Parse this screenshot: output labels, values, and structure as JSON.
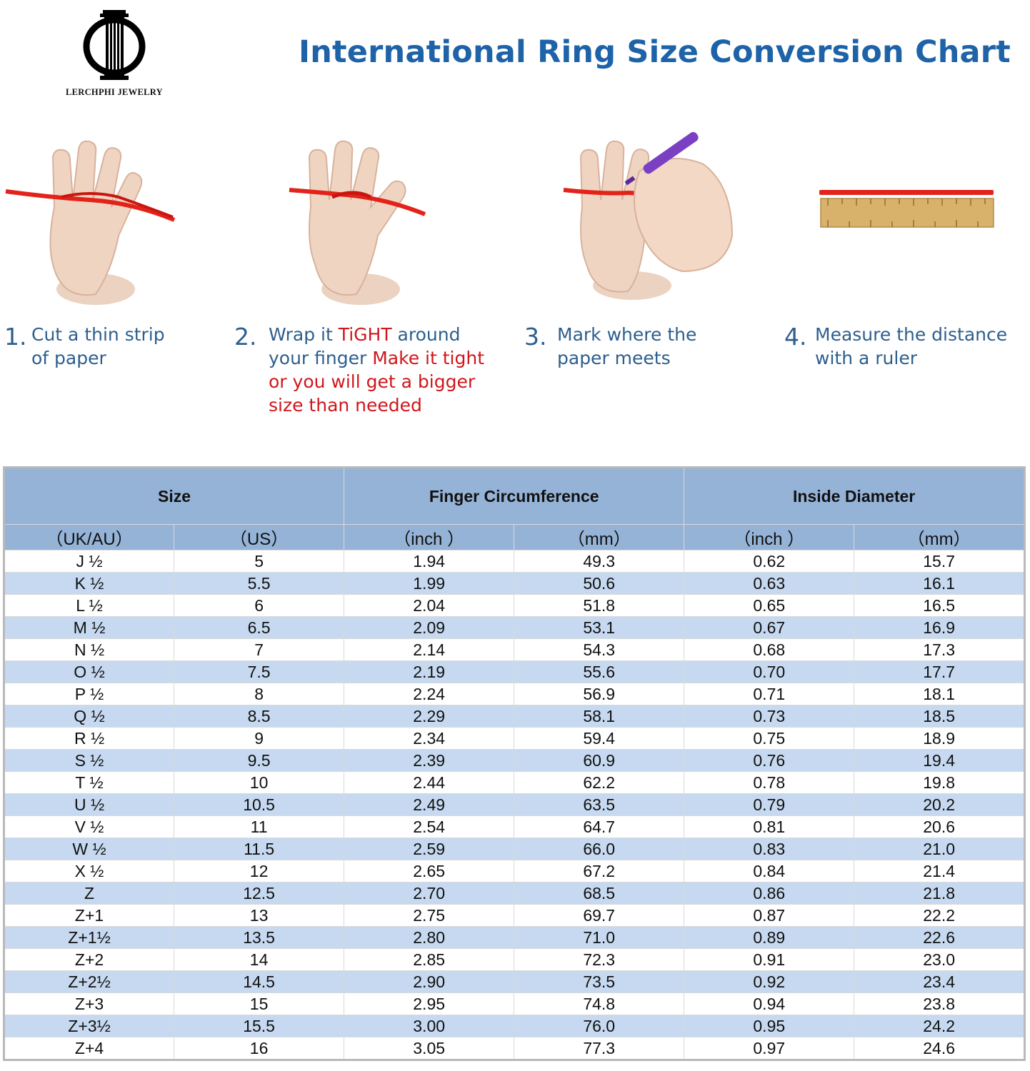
{
  "brand": {
    "name": "LERCHPHI JEWELRY",
    "logo_icon": "column-logo-icon"
  },
  "title": "International Ring Size Conversion Chart",
  "colors": {
    "title_blue": "#1e63a8",
    "step_blue": "#2d5f8e",
    "warning_red": "#d0171b",
    "header_blue": "#95b3d7",
    "stripe_blue": "#c6d9f0"
  },
  "steps": [
    {
      "number": "1.",
      "line1": "Cut a thin strip",
      "line2": "of paper",
      "image": "hand-with-strip-icon"
    },
    {
      "number": "2.",
      "pre": "Wrap it ",
      "tight": "TiGHT",
      "post": " around",
      "line2_pre": "your finger ",
      "line2_red": "Make it tight",
      "line3": "or you will get a bigger",
      "line4": "size  than needed",
      "image": "hand-wrapped-strip-icon"
    },
    {
      "number": "3.",
      "line1": "Mark where the",
      "line2": "paper meets",
      "image": "hand-marking-pen-icon"
    },
    {
      "number": "4.",
      "line1": "Measure the distance",
      "line2": "with a ruler",
      "image": "ruler-with-strip-icon"
    }
  ],
  "table": {
    "group_headers": [
      "Size",
      "Finger Circumference",
      "Inside Diameter"
    ],
    "sub_headers": [
      "（UK/AU）",
      "（US）",
      "（inch ）",
      "（mm）",
      "（inch ）",
      "（mm）"
    ],
    "rows": [
      [
        "J ½",
        "5",
        "1.94",
        "49.3",
        "0.62",
        "15.7"
      ],
      [
        "K ½",
        "5.5",
        "1.99",
        "50.6",
        "0.63",
        "16.1"
      ],
      [
        "L ½",
        "6",
        "2.04",
        "51.8",
        "0.65",
        "16.5"
      ],
      [
        "M ½",
        "6.5",
        "2.09",
        "53.1",
        "0.67",
        "16.9"
      ],
      [
        "N ½",
        "7",
        "2.14",
        "54.3",
        "0.68",
        "17.3"
      ],
      [
        "O ½",
        "7.5",
        "2.19",
        "55.6",
        "0.70",
        "17.7"
      ],
      [
        "P ½",
        "8",
        "2.24",
        "56.9",
        "0.71",
        "18.1"
      ],
      [
        "Q ½",
        "8.5",
        "2.29",
        "58.1",
        "0.73",
        "18.5"
      ],
      [
        "R ½",
        "9",
        "2.34",
        "59.4",
        "0.75",
        "18.9"
      ],
      [
        "S ½",
        "9.5",
        "2.39",
        "60.9",
        "0.76",
        "19.4"
      ],
      [
        "T ½",
        "10",
        "2.44",
        "62.2",
        "0.78",
        "19.8"
      ],
      [
        "U ½",
        "10.5",
        "2.49",
        "63.5",
        "0.79",
        "20.2"
      ],
      [
        "V ½",
        "11",
        "2.54",
        "64.7",
        "0.81",
        "20.6"
      ],
      [
        "W ½",
        "11.5",
        "2.59",
        "66.0",
        "0.83",
        "21.0"
      ],
      [
        "X ½",
        "12",
        "2.65",
        "67.2",
        "0.84",
        "21.4"
      ],
      [
        "Z",
        "12.5",
        "2.70",
        "68.5",
        "0.86",
        "21.8"
      ],
      [
        "Z+1",
        "13",
        "2.75",
        "69.7",
        "0.87",
        "22.2"
      ],
      [
        "Z+1½",
        "13.5",
        "2.80",
        "71.0",
        "0.89",
        "22.6"
      ],
      [
        "Z+2",
        "14",
        "2.85",
        "72.3",
        "0.91",
        "23.0"
      ],
      [
        "Z+2½",
        "14.5",
        "2.90",
        "73.5",
        "0.92",
        "23.4"
      ],
      [
        "Z+3",
        "15",
        "2.95",
        "74.8",
        "0.94",
        "23.8"
      ],
      [
        "Z+3½",
        "15.5",
        "3.00",
        "76.0",
        "0.95",
        "24.2"
      ],
      [
        "Z+4",
        "16",
        "3.05",
        "77.3",
        "0.97",
        "24.6"
      ]
    ]
  }
}
